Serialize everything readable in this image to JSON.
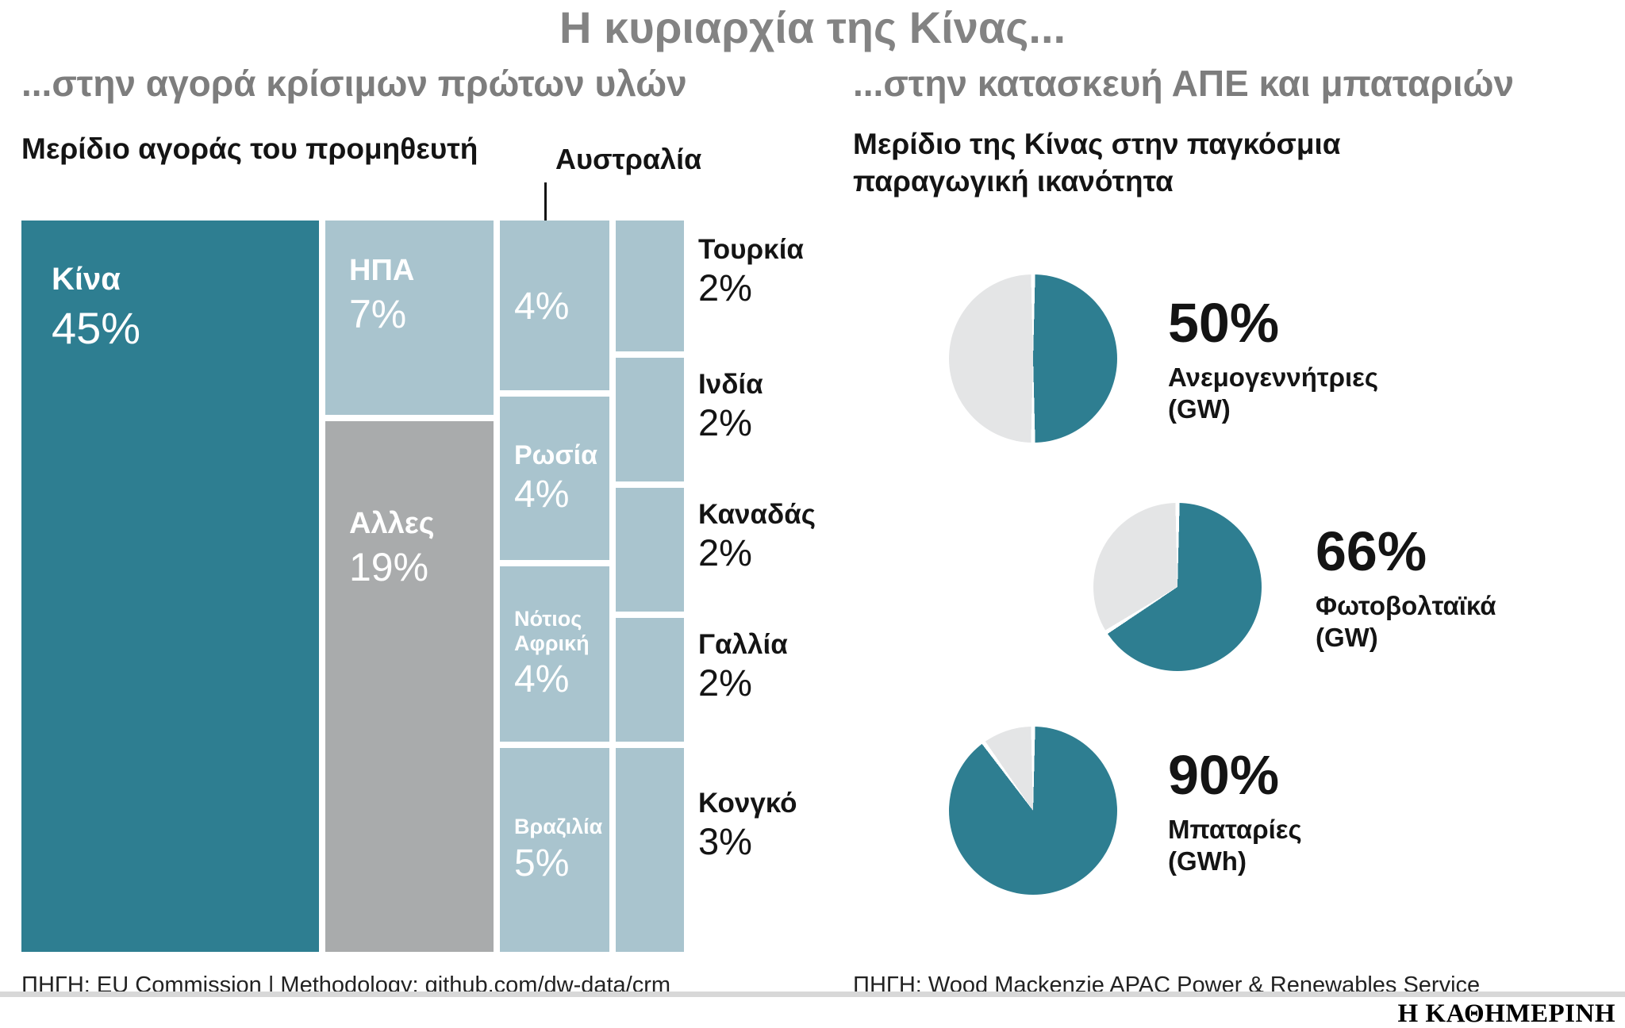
{
  "header": {
    "title": "Η κυριαρχία της Κίνας..."
  },
  "left_panel": {
    "subtitle": "...στην αγορά κρίσιμων πρώτων υλών",
    "heading": "Μερίδιο αγοράς του προμηθευτή",
    "source": "ΠΗΓΗ: EU Commission | Methodology: github.com/dw-data/crm"
  },
  "right_panel": {
    "subtitle": "...στην κατασκευή ΑΠΕ και μπαταριών",
    "heading": "Μερίδιο της Κίνας στην παγκόσμια παραγωγική ικανότητα",
    "source": "ΠΗΓΗ: Wood Mackenzie APAC Power & Renewables Service"
  },
  "brand": "Η ΚΑΘΗΜΕΡΙΝΗ",
  "colors": {
    "teal": "#2e7e91",
    "light_blue": "#a9c4ce",
    "gray_block": "#a9abac",
    "pie_rest": "#e4e5e6",
    "title_gray": "#838383"
  },
  "chart_data": [
    {
      "type": "treemap",
      "title": "Μερίδιο αγοράς του προμηθευτή",
      "items": [
        {
          "label": "Κίνα",
          "value": 45,
          "display": "45%"
        },
        {
          "label": "ΗΠΑ",
          "value": 7,
          "display": "7%"
        },
        {
          "label": "Αλλες",
          "value": 19,
          "display": "19%"
        },
        {
          "label": "Αυστραλία",
          "value": 4,
          "display": "4%"
        },
        {
          "label": "Ρωσία",
          "value": 4,
          "display": "4%"
        },
        {
          "label": "Νότιος Αφρική",
          "value": 4,
          "display": "4%"
        },
        {
          "label": "Βραζιλία",
          "value": 5,
          "display": "5%"
        },
        {
          "label": "Τουρκία",
          "value": 2,
          "display": "2%"
        },
        {
          "label": "Ινδία",
          "value": 2,
          "display": "2%"
        },
        {
          "label": "Καναδάς",
          "value": 2,
          "display": "2%"
        },
        {
          "label": "Γαλλία",
          "value": 2,
          "display": "2%"
        },
        {
          "label": "Κονγκό",
          "value": 3,
          "display": "3%"
        }
      ]
    },
    {
      "type": "pie",
      "title": "Μερίδιο της Κίνας στην παγκόσμια παραγωγική ικανότητα",
      "legend_position": "right",
      "pies": [
        {
          "label": "Ανεμογεννήτριες",
          "unit": "(GW)",
          "value": 50,
          "display": "50%"
        },
        {
          "label": "Φωτοβολταϊκά",
          "unit": "(GW)",
          "value": 66,
          "display": "66%"
        },
        {
          "label": "Μπαταρίες",
          "unit": "(GWh)",
          "value": 90,
          "display": "90%"
        }
      ]
    }
  ]
}
